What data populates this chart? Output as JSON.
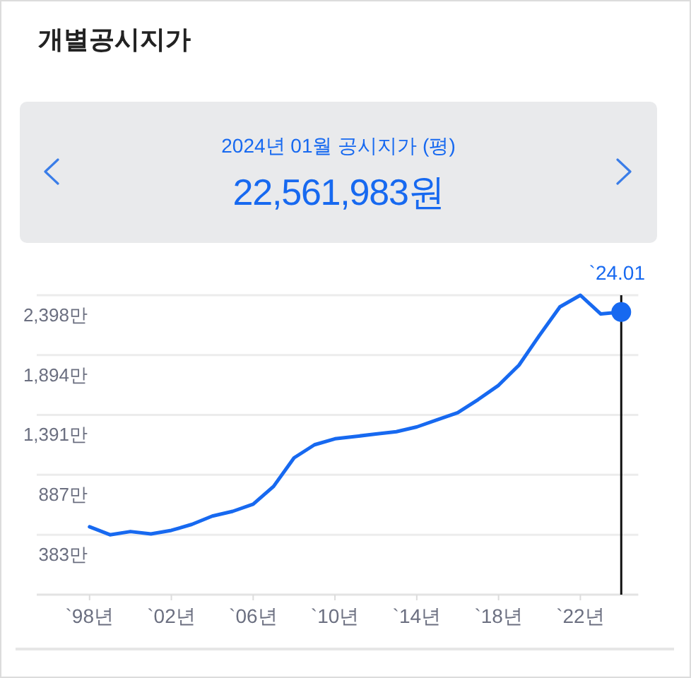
{
  "chart_data": {
    "type": "line",
    "title": "개별공시지가",
    "subtitle": "2024년 01월 공시지가 (평)",
    "annotations": [
      "22,561,983원"
    ],
    "x": [
      "1998",
      "1999",
      "2000",
      "2001",
      "2002",
      "2003",
      "2004",
      "2005",
      "2006",
      "2007",
      "2008",
      "2009",
      "2010",
      "2011",
      "2012",
      "2013",
      "2014",
      "2015",
      "2016",
      "2017",
      "2018",
      "2019",
      "2020",
      "2021",
      "2022",
      "2023",
      "2024-01"
    ],
    "series": [
      {
        "color": "#1769f0",
        "values": [
          450,
          383,
          410,
          390,
          420,
          470,
          540,
          580,
          640,
          790,
          1030,
          1140,
          1190,
          1210,
          1230,
          1250,
          1290,
          1350,
          1410,
          1520,
          1640,
          1810,
          2060,
          2300,
          2398,
          2240,
          2256.1983
        ]
      },
      {
        "type": "scatter",
        "x": [
          "2024-01"
        ],
        "color": "#1769f0",
        "values": [
          2256.1983
        ]
      }
    ],
    "xlim": [
      "1995-06",
      "2024-11"
    ],
    "xticks": [
      {
        "value": "1998",
        "label": "`98년"
      },
      {
        "value": "2002",
        "label": "`02년"
      },
      {
        "value": "2006",
        "label": "`06년"
      },
      {
        "value": "2010",
        "label": "`10년"
      },
      {
        "value": "2014",
        "label": "`14년"
      },
      {
        "value": "2018",
        "label": "`18년"
      },
      {
        "value": "2022",
        "label": "`22년"
      }
    ],
    "ylim": [
      -121,
      2398
    ],
    "yticks": [
      {
        "value": 2398,
        "label": "2,398만"
      },
      {
        "value": 1894,
        "label": "1,894만"
      },
      {
        "value": 1391,
        "label": "1,391만"
      },
      {
        "value": 887,
        "label": "887만"
      },
      {
        "value": 383,
        "label": "383만"
      }
    ],
    "ref_lines": [
      {
        "axis": "x",
        "value": "2024-01",
        "label": "`24.01",
        "color": "#111111"
      }
    ],
    "grid": "y"
  }
}
